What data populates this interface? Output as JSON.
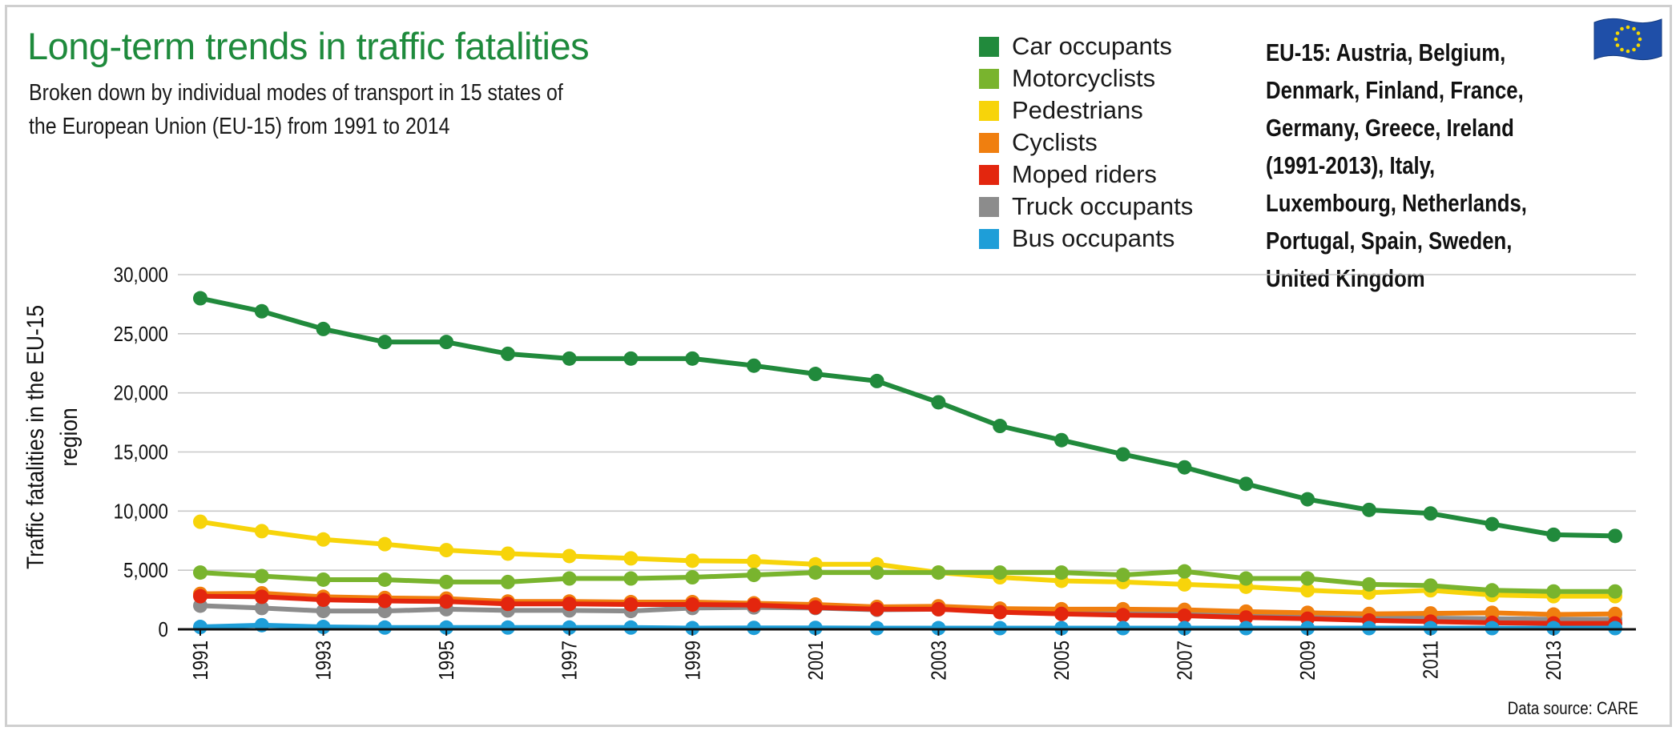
{
  "title": "Long-term trends in traffic fatalities",
  "subtitle": "Broken down by individual modes of transport in 15 states of the European Union (EU-15) from 1991 to 2014",
  "note": "EU-15: Austria, Belgium, Denmark, Finland, France, Germany, Greece, Ireland (1991-2013), Italy, Luxembourg, Netherlands, Portugal, Spain, Sweden, United Kingdom",
  "source": "Data source: CARE",
  "flag_icon": "eu-flag-icon",
  "chart_data": {
    "type": "line",
    "title": "Long-term trends in traffic fatalities",
    "xlabel": "",
    "ylabel_lines": [
      "Traffic fatalities in the EU-15",
      "region"
    ],
    "ylim": [
      0,
      30000
    ],
    "yticks": [
      0,
      5000,
      10000,
      15000,
      20000,
      25000,
      30000
    ],
    "ytick_labels": [
      "0",
      "5,000",
      "10,000",
      "15,000",
      "20,000",
      "25,000",
      "30,000"
    ],
    "xtick_labels": [
      "1991",
      "1993",
      "1995",
      "1997",
      "1999",
      "2001",
      "2003",
      "2005",
      "2007",
      "2009",
      "2011",
      "2013"
    ],
    "grid": true,
    "legend_position": "top",
    "x": [
      1991,
      1992,
      1993,
      1994,
      1995,
      1996,
      1997,
      1998,
      1999,
      2000,
      2001,
      2002,
      2003,
      2004,
      2005,
      2006,
      2007,
      2008,
      2009,
      2010,
      2011,
      2012,
      2013,
      2014
    ],
    "series": [
      {
        "name": "Truck occupants",
        "color": "#8c8c8c",
        "values": [
          2000,
          1800,
          1550,
          1550,
          1700,
          1600,
          1600,
          1550,
          1800,
          1850,
          1800,
          1650,
          1700,
          1550,
          1550,
          1500,
          1400,
          1250,
          1050,
          1000,
          950,
          900,
          850,
          850
        ]
      },
      {
        "name": "Cyclists",
        "color": "#f07f0f",
        "values": [
          3000,
          3050,
          2750,
          2650,
          2600,
          2350,
          2350,
          2300,
          2300,
          2200,
          2100,
          1900,
          1950,
          1750,
          1700,
          1700,
          1650,
          1500,
          1400,
          1300,
          1350,
          1400,
          1250,
          1300
        ]
      },
      {
        "name": "Moped riders",
        "color": "#e3260e",
        "values": [
          2800,
          2750,
          2500,
          2400,
          2350,
          2150,
          2150,
          2100,
          2100,
          2050,
          1850,
          1700,
          1700,
          1450,
          1300,
          1200,
          1150,
          1000,
          900,
          750,
          650,
          550,
          500,
          500
        ]
      },
      {
        "name": "Bus occupants",
        "color": "#1e9ed8",
        "values": [
          200,
          350,
          200,
          150,
          150,
          150,
          150,
          150,
          100,
          120,
          120,
          100,
          100,
          100,
          100,
          100,
          100,
          100,
          100,
          100,
          100,
          100,
          100,
          100
        ]
      },
      {
        "name": "Pedestrians",
        "color": "#f7d40a",
        "values": [
          9100,
          8300,
          7600,
          7200,
          6700,
          6400,
          6200,
          6000,
          5800,
          5750,
          5500,
          5500,
          4800,
          4400,
          4100,
          4000,
          3800,
          3600,
          3300,
          3100,
          3300,
          2900,
          2800,
          2800
        ]
      },
      {
        "name": "Motorcyclists",
        "color": "#79b42e",
        "values": [
          4800,
          4500,
          4200,
          4200,
          4000,
          4000,
          4300,
          4300,
          4400,
          4600,
          4800,
          4800,
          4800,
          4800,
          4800,
          4600,
          4900,
          4300,
          4300,
          3800,
          3700,
          3300,
          3200,
          3200
        ]
      },
      {
        "name": "Car occupants",
        "color": "#218a3c",
        "values": [
          28000,
          26900,
          25400,
          24300,
          24300,
          23300,
          22900,
          22900,
          22900,
          22300,
          21600,
          21000,
          19200,
          17200,
          16000,
          14800,
          13700,
          12300,
          11000,
          10100,
          9800,
          8900,
          8000,
          7900
        ]
      }
    ],
    "legend_order": [
      "Car occupants",
      "Motorcyclists",
      "Pedestrians",
      "Cyclists",
      "Moped riders",
      "Truck occupants",
      "Bus occupants"
    ]
  }
}
